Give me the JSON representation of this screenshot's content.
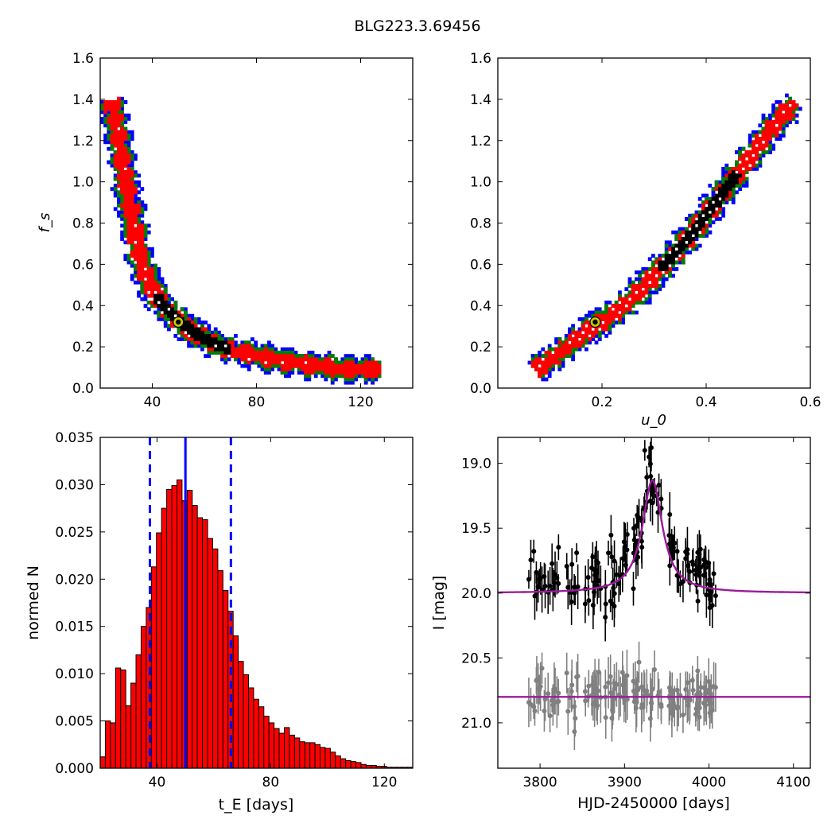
{
  "figure": {
    "title": "BLG223.3.69456"
  },
  "chart_data": [
    {
      "id": "tE-fs",
      "type": "heatmap",
      "xlabel": "",
      "ylabel": "f_s",
      "xlim": [
        20,
        140
      ],
      "ylim": [
        0.0,
        1.6
      ],
      "xticks": [
        40,
        80,
        120
      ],
      "xticklabels": [
        "40",
        "80",
        "120"
      ],
      "yticks": [
        0.0,
        0.2,
        0.4,
        0.6,
        0.8,
        1.0,
        1.2,
        1.4,
        1.6
      ],
      "yticklabels": [
        "0.0",
        "0.2",
        "0.4",
        "0.6",
        "0.8",
        "1.0",
        "1.2",
        "1.4",
        "1.6"
      ],
      "colors": {
        "outer": "#0000ff",
        "middle": "#008000",
        "inner": "#ff0000",
        "core": "#000000",
        "marker": "#c8c800"
      },
      "ridge": [
        [
          23.5,
          1.4
        ],
        [
          25,
          1.32
        ],
        [
          27,
          1.18
        ],
        [
          29,
          1.02
        ],
        [
          31,
          0.88
        ],
        [
          33,
          0.74
        ],
        [
          35,
          0.62
        ],
        [
          38,
          0.52
        ],
        [
          41,
          0.45
        ],
        [
          45,
          0.39
        ],
        [
          50,
          0.33
        ],
        [
          55,
          0.28
        ],
        [
          62,
          0.23
        ],
        [
          70,
          0.19
        ],
        [
          80,
          0.165
        ],
        [
          90,
          0.14
        ],
        [
          100,
          0.12
        ],
        [
          110,
          0.105
        ],
        [
          120,
          0.1
        ],
        [
          128,
          0.1
        ]
      ],
      "best_fit": [
        50,
        0.32
      ]
    },
    {
      "id": "u0-fs",
      "type": "heatmap",
      "xlabel": "u_0",
      "ylabel": "",
      "xlim": [
        0.0,
        0.6
      ],
      "ylim": [
        0.0,
        1.6
      ],
      "xticks": [
        0.2,
        0.4,
        0.6
      ],
      "xticklabels": [
        "0.2",
        "0.4",
        "0.6"
      ],
      "yticks": [
        0.0,
        0.2,
        0.4,
        0.6,
        0.8,
        1.0,
        1.2,
        1.4,
        1.6
      ],
      "yticklabels": [
        "0.0",
        "0.2",
        "0.4",
        "0.6",
        "0.8",
        "1.0",
        "1.2",
        "1.4",
        "1.6"
      ],
      "colors": {
        "outer": "#0000ff",
        "middle": "#008000",
        "inner": "#ff0000",
        "core": "#000000",
        "marker": "#c8c800"
      },
      "ridge": [
        [
          0.07,
          0.1
        ],
        [
          0.1,
          0.15
        ],
        [
          0.13,
          0.21
        ],
        [
          0.16,
          0.27
        ],
        [
          0.19,
          0.32
        ],
        [
          0.22,
          0.37
        ],
        [
          0.25,
          0.43
        ],
        [
          0.28,
          0.51
        ],
        [
          0.31,
          0.59
        ],
        [
          0.34,
          0.67
        ],
        [
          0.37,
          0.76
        ],
        [
          0.4,
          0.86
        ],
        [
          0.43,
          0.96
        ],
        [
          0.46,
          1.06
        ],
        [
          0.49,
          1.16
        ],
        [
          0.52,
          1.26
        ],
        [
          0.55,
          1.35
        ],
        [
          0.57,
          1.4
        ]
      ],
      "best_fit": [
        0.187,
        0.32
      ]
    },
    {
      "id": "tE-hist",
      "type": "bar",
      "xlabel": "t_E  [days]",
      "ylabel": "normed N",
      "xlim": [
        20,
        130
      ],
      "ylim": [
        0,
        0.035
      ],
      "xticks": [
        40,
        80,
        120
      ],
      "xticklabels": [
        "40",
        "80",
        "120"
      ],
      "yticks": [
        0,
        0.005,
        0.01,
        0.015,
        0.02,
        0.025,
        0.03,
        0.035
      ],
      "yticklabels": [
        "0.000",
        "0.005",
        "0.010",
        "0.015",
        "0.020",
        "0.025",
        "0.030",
        "0.035"
      ],
      "bin_start": 20,
      "bin_width": 1.8,
      "values": [
        0.0012,
        0.005,
        0.0048,
        0.0106,
        0.0104,
        0.0066,
        0.009,
        0.012,
        0.015,
        0.017,
        0.0213,
        0.0249,
        0.0275,
        0.0295,
        0.0299,
        0.0305,
        0.0283,
        0.0294,
        0.0278,
        0.0265,
        0.0263,
        0.0243,
        0.0232,
        0.0209,
        0.0188,
        0.0166,
        0.014,
        0.0113,
        0.0099,
        0.0085,
        0.0073,
        0.0065,
        0.0055,
        0.0048,
        0.0042,
        0.0037,
        0.0043,
        0.0035,
        0.0032,
        0.0028,
        0.0027,
        0.0027,
        0.0025,
        0.0022,
        0.0021,
        0.0017,
        0.0013,
        0.001,
        0.0008,
        0.0007,
        0.0006,
        0.0004,
        0.0003,
        0.0003,
        0.0002,
        0.0002,
        0.0001,
        0.0001,
        0.0001,
        0.0001,
        0.0001
      ],
      "bar_color": "#ff0000",
      "median": 50,
      "interval": [
        37.5,
        66
      ]
    },
    {
      "id": "lightcurve",
      "type": "scatter",
      "xlabel": "HJD-2450000 [days]",
      "ylabel": "I [mag]",
      "xlim": [
        3750,
        4120
      ],
      "ylim": [
        21.35,
        18.8
      ],
      "y_inverted": true,
      "xticks": [
        3800,
        3900,
        4000,
        4100
      ],
      "xticklabels": [
        "3800",
        "3900",
        "4000",
        "4100"
      ],
      "yticks": [
        19.0,
        19.5,
        20.0,
        20.5,
        21.0
      ],
      "yticklabels": [
        "19.0",
        "19.5",
        "20.0",
        "20.5",
        "21.0"
      ],
      "series": [
        {
          "color": "#000000",
          "baseline": 20.0,
          "peak_time": 3933,
          "peak_mag": 19.13,
          "peak_points": [
            [
              3924,
              18.9
            ],
            [
              3929,
              18.95
            ],
            [
              3931,
              19.1
            ],
            [
              3934,
              19.2
            ],
            [
              3938,
              19.25
            ],
            [
              3915,
              19.4
            ],
            [
              3911,
              19.5
            ],
            [
              3926,
              19.3
            ]
          ]
        },
        {
          "color": "#808080",
          "baseline": 20.8
        }
      ],
      "model": {
        "color": "#9b1b9b",
        "t0": 3933,
        "peak_mag": 19.13,
        "baseline_mag": 20.0,
        "width": 25,
        "second_baseline_mag": 20.8
      },
      "time_range": [
        3785,
        4008
      ]
    }
  ]
}
